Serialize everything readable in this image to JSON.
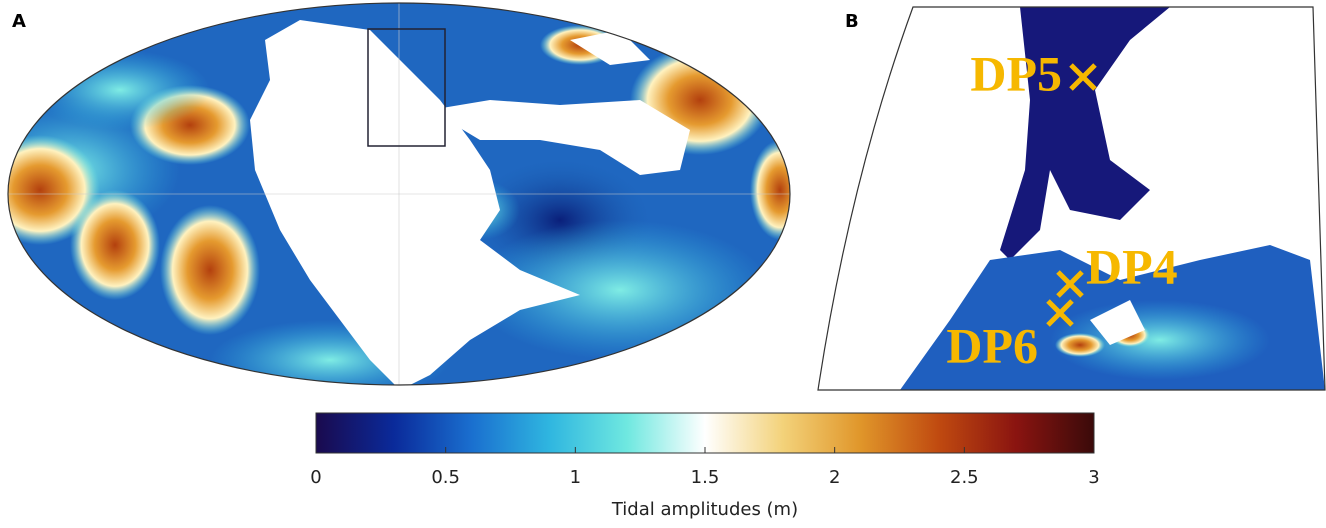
{
  "panels": {
    "a": {
      "label": "A"
    },
    "b": {
      "label": "B",
      "sites": [
        {
          "name": "DP5"
        },
        {
          "name": "DP4"
        },
        {
          "name": "DP6"
        }
      ]
    }
  },
  "colorbar": {
    "lim": [
      0,
      3
    ],
    "ticks": [
      0,
      0.5,
      1,
      1.5,
      2,
      2.5,
      3
    ],
    "label": "Tidal amplitudes (m)",
    "colors": [
      "#1a0a4e",
      "#0a2a9a",
      "#1a6fcf",
      "#2fb6e0",
      "#6fe8e0",
      "#ffffff",
      "#f3d27a",
      "#e0962a",
      "#c04a10",
      "#8a1410",
      "#3a0a0a"
    ]
  }
}
